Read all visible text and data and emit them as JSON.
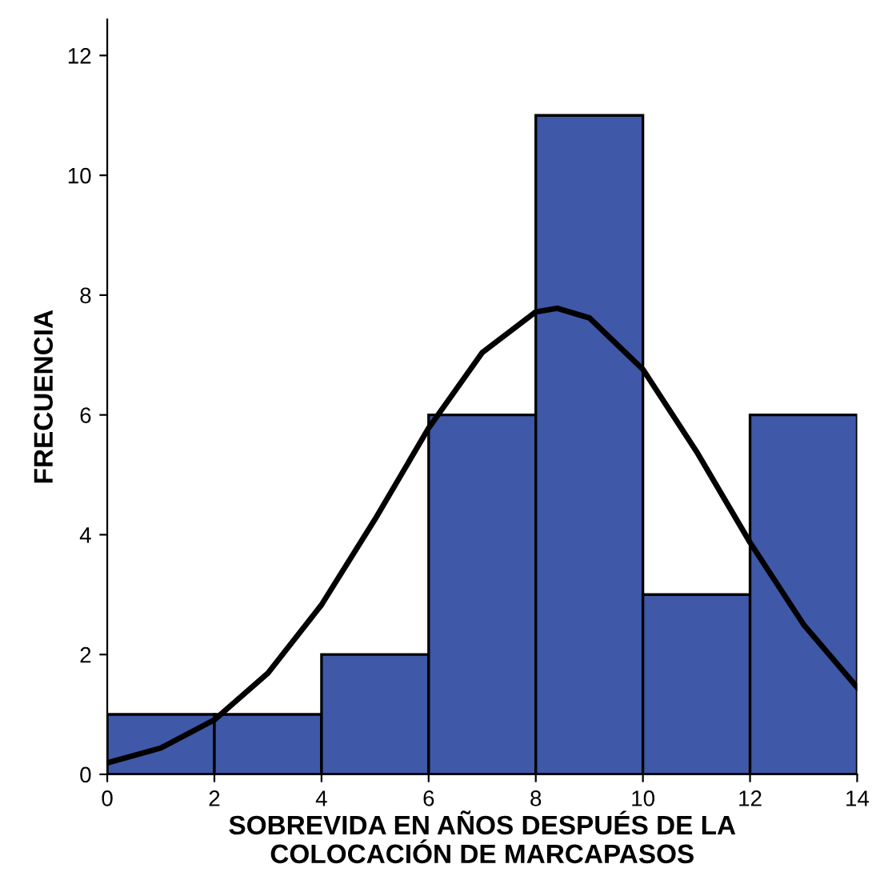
{
  "chart_data": {
    "type": "histogram",
    "xlabel": "SOBREVIDA EN AÑOS DESPUÉS DE LA\nCOLOCACIÓN DE MARCAPASOS",
    "ylabel": "FRECUENCIA",
    "bins": [
      0,
      2,
      4,
      6,
      8,
      10,
      12,
      14
    ],
    "values": [
      1,
      1,
      2,
      6,
      11,
      3,
      6
    ],
    "color": "#3f58a8",
    "series": [
      {
        "type": "line",
        "color": "#000000",
        "x": [
          0,
          1,
          2,
          3,
          4,
          5,
          6,
          7,
          8,
          8.4,
          9,
          10,
          11,
          12,
          13,
          14
        ],
        "values": [
          0.19,
          0.44,
          0.91,
          1.69,
          2.83,
          4.26,
          5.78,
          7.04,
          7.72,
          7.78,
          7.62,
          6.76,
          5.39,
          3.87,
          2.5,
          1.45
        ]
      }
    ],
    "xlim": [
      0,
      14
    ],
    "xticks": [
      0,
      2,
      4,
      6,
      8,
      10,
      12,
      14
    ],
    "ylim": [
      0,
      12.6
    ],
    "yticks": [
      0,
      2,
      4,
      6,
      8,
      10,
      12
    ],
    "grid": false,
    "legend": false
  }
}
